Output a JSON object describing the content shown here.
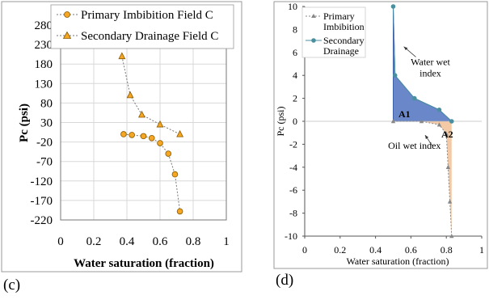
{
  "panel_labels": {
    "left": "(c)",
    "right": "(d)"
  },
  "chart_data": [
    {
      "type": "scatter",
      "xlabel": "Water saturation (fraction)",
      "ylabel": "Pc (psi)",
      "xlim": [
        0,
        1
      ],
      "ylim": [
        -220,
        280
      ],
      "xticks": [
        "0",
        "0.2",
        "0.4",
        "0.6",
        "0.8",
        "1"
      ],
      "yticks": [
        "280",
        "230",
        "180",
        "130",
        "80",
        "30",
        "-20",
        "-70",
        "-120",
        "-170",
        "-220"
      ],
      "grid": true,
      "legend": "top-inside",
      "series": [
        {
          "name": "Primary Imbibition Field C",
          "marker": "circle",
          "color": "#f5a623",
          "x": [
            0.38,
            0.43,
            0.5,
            0.55,
            0.6,
            0.65,
            0.69,
            0.72
          ],
          "y": [
            0,
            -2,
            -5,
            -10,
            -23,
            -50,
            -103,
            -198
          ]
        },
        {
          "name": "Secondary Drainage Field C",
          "marker": "triangle",
          "color": "#f5a623",
          "x": [
            0.37,
            0.42,
            0.49,
            0.6,
            0.72
          ],
          "y": [
            200,
            100,
            50,
            25,
            0
          ]
        }
      ]
    },
    {
      "type": "line",
      "xlabel": "Water saturation (fraction)",
      "ylabel": "Pc (psi)",
      "xlim": [
        0,
        1
      ],
      "ylim": [
        -10,
        10
      ],
      "xticks": [
        "0",
        "0.2",
        "0.4",
        "0.6",
        "0.8",
        "1"
      ],
      "yticks": [
        "10",
        "8",
        "6",
        "4",
        "2",
        "0",
        "-2",
        "-4",
        "-6",
        "-8",
        "-10"
      ],
      "grid": false,
      "legend": "top-left",
      "series": [
        {
          "name": "Primary\nImbibition",
          "marker": "triangle",
          "color": "#888888",
          "x": [
            0.5,
            0.66,
            0.76,
            0.8,
            0.81,
            0.82,
            0.83
          ],
          "y": [
            0,
            0,
            -0.3,
            -1.1,
            -4.0,
            -7.0,
            -10.0
          ]
        },
        {
          "name": "Secondary\nDrainage",
          "marker": "circle",
          "color": "#4a8fa0",
          "x": [
            0.5,
            0.51,
            0.62,
            0.76,
            0.83
          ],
          "y": [
            10,
            4,
            2,
            1,
            0
          ]
        }
      ],
      "areas": [
        {
          "name": "A1",
          "color": "#6a88c9"
        },
        {
          "name": "A2",
          "color": "#f3c9a6"
        }
      ],
      "annotations": [
        {
          "text": "Water wet\nindex",
          "x": 0.71,
          "y": 4.9,
          "arrow_to": [
            0.56,
            6.5
          ]
        },
        {
          "text": "Oil wet index",
          "x": 0.62,
          "y": -2.4,
          "arrow_to": [
            0.68,
            -1.2
          ]
        }
      ]
    }
  ]
}
